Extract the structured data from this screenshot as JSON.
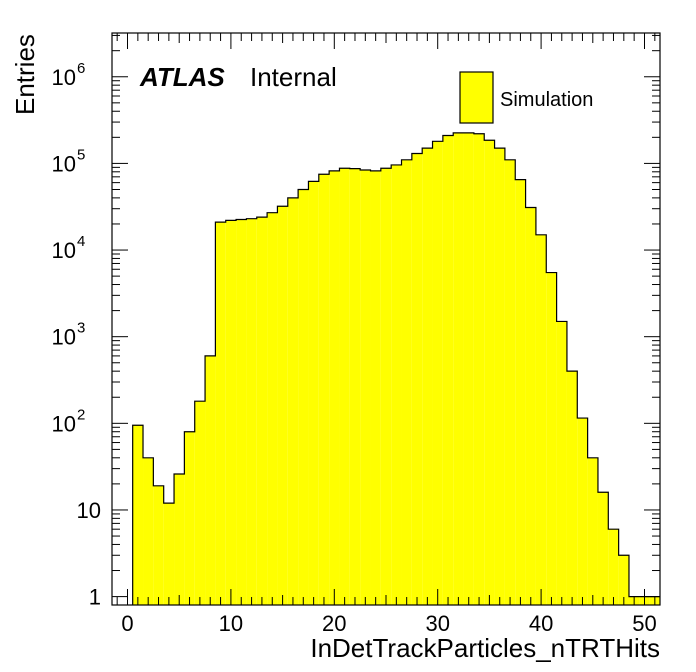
{
  "chart_data": {
    "type": "bar",
    "xlabel": "InDetTrackParticles_nTRTHits",
    "ylabel": "Entries",
    "ylog": true,
    "xlim": [
      -1.5,
      51.5
    ],
    "ylim": [
      0.8,
      3200000
    ],
    "x_ticks": [
      0,
      10,
      20,
      30,
      40,
      50
    ],
    "y_ticks": [
      {
        "value": 1,
        "mantissa": "1",
        "exp": ""
      },
      {
        "value": 10,
        "mantissa": "10",
        "exp": ""
      },
      {
        "value": 100,
        "mantissa": "10",
        "exp": "2"
      },
      {
        "value": 1000,
        "mantissa": "10",
        "exp": "3"
      },
      {
        "value": 10000,
        "mantissa": "10",
        "exp": "4"
      },
      {
        "value": 100000,
        "mantissa": "10",
        "exp": "5"
      },
      {
        "value": 1000000,
        "mantissa": "10",
        "exp": "6"
      }
    ],
    "bin_width": 1,
    "bin_low_edges": [
      0.5,
      1.5,
      2.5,
      3.5,
      4.5,
      5.5,
      6.5,
      7.5,
      8.5,
      9.5,
      10.5,
      11.5,
      12.5,
      13.5,
      14.5,
      15.5,
      16.5,
      17.5,
      18.5,
      19.5,
      20.5,
      21.5,
      22.5,
      23.5,
      24.5,
      25.5,
      26.5,
      27.5,
      28.5,
      29.5,
      30.5,
      31.5,
      32.5,
      33.5,
      34.5,
      35.5,
      36.5,
      37.5,
      38.5,
      39.5,
      40.5,
      41.5,
      42.5,
      43.5,
      44.5,
      45.5,
      46.5,
      47.5,
      48.5,
      49.5,
      50.5
    ],
    "values": [
      95,
      40,
      19,
      12,
      26,
      80,
      180,
      600,
      21000,
      22000,
      22500,
      23000,
      24000,
      27000,
      32000,
      40000,
      50000,
      62000,
      75000,
      82000,
      88000,
      87000,
      84000,
      82000,
      88000,
      96000,
      110000,
      130000,
      150000,
      180000,
      210000,
      225000,
      225000,
      220000,
      185000,
      150000,
      110000,
      65000,
      31000,
      15000,
      5500,
      1500,
      400,
      115,
      40,
      16,
      6,
      3,
      1,
      1,
      1
    ],
    "fill_color": "#ffff00",
    "line_color": "#000000",
    "legend": {
      "placement": "top-right",
      "entries": [
        {
          "label": "Simulation",
          "color": "#ffff00"
        }
      ]
    },
    "annotation": {
      "bold": "ATLAS",
      "normal": "Internal"
    },
    "grid": false
  }
}
